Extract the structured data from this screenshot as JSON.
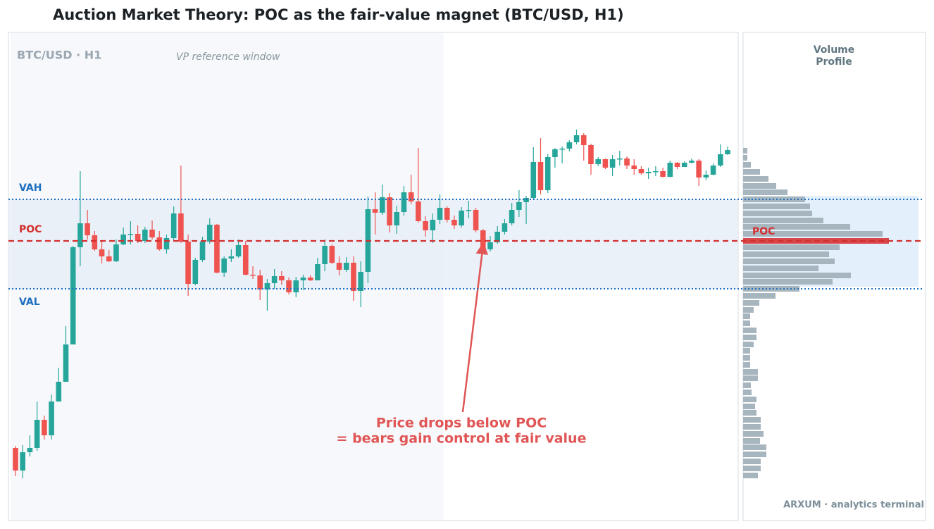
{
  "chart_data": {
    "type": "candlestick",
    "title": "Auction Market Theory: POC as the fair-value magnet  (BTC/USD, H1)",
    "watermark": "BTC/USD · H1",
    "window_label": "VP reference window",
    "vp_window": [
      0,
      59
    ],
    "up_color": "#26a69a",
    "down_color": "#ef5350",
    "ylim": [
      61,
      754
    ],
    "open": [
      164,
      132,
      158,
      164,
      204,
      182,
      230,
      258,
      311,
      449,
      483,
      466,
      446,
      436,
      429,
      453,
      467,
      468,
      458,
      474,
      463,
      446,
      462,
      497,
      457,
      397,
      431,
      457,
      481,
      413,
      433,
      436,
      452,
      410,
      409,
      389,
      398,
      408,
      402,
      385,
      402,
      406,
      402,
      425,
      451,
      427,
      417,
      427,
      387,
      414,
      503,
      498,
      520,
      480,
      499,
      527,
      514,
      486,
      473,
      488,
      505,
      488,
      480,
      501,
      502,
      473,
      446,
      456,
      471,
      483,
      502,
      513,
      519,
      570,
      530,
      577,
      588,
      589,
      598,
      608,
      594,
      567,
      574,
      562,
      574,
      575,
      565,
      560,
      554,
      556,
      557,
      549,
      569,
      563,
      569,
      572,
      548,
      552,
      565,
      581
    ],
    "high": [
      167,
      168,
      182,
      230,
      210,
      240,
      278,
      337,
      451,
      557,
      502,
      472,
      457,
      445,
      460,
      477,
      486,
      480,
      478,
      487,
      472,
      467,
      507,
      565,
      467,
      434,
      464,
      490,
      482,
      436,
      446,
      460,
      458,
      422,
      417,
      404,
      418,
      415,
      406,
      407,
      410,
      409,
      434,
      460,
      453,
      436,
      435,
      436,
      429,
      521,
      527,
      538,
      526,
      508,
      536,
      552,
      590,
      493,
      497,
      524,
      507,
      494,
      506,
      515,
      505,
      475,
      465,
      479,
      489,
      512,
      530,
      522,
      591,
      604,
      581,
      590,
      592,
      601,
      616,
      611,
      596,
      577,
      575,
      580,
      586,
      578,
      574,
      564,
      562,
      564,
      562,
      572,
      570,
      571,
      575,
      574,
      558,
      568,
      595,
      592
    ],
    "low": [
      124,
      121,
      152,
      160,
      176,
      176,
      230,
      258,
      311,
      422,
      460,
      444,
      426,
      428,
      428,
      452,
      453,
      455,
      455,
      460,
      444,
      440,
      458,
      455,
      380,
      395,
      428,
      454,
      412,
      407,
      428,
      434,
      409,
      404,
      374,
      359,
      390,
      396,
      382,
      378,
      388,
      401,
      402,
      415,
      425,
      409,
      414,
      373,
      364,
      398,
      467,
      495,
      470,
      468,
      494,
      510,
      484,
      464,
      455,
      482,
      484,
      475,
      477,
      490,
      470,
      442,
      443,
      454,
      467,
      480,
      492,
      482,
      516,
      524,
      526,
      562,
      568,
      585,
      595,
      572,
      552,
      564,
      560,
      550,
      565,
      560,
      552,
      552,
      546,
      550,
      548,
      548,
      560,
      563,
      568,
      536,
      544,
      551,
      563,
      580
    ],
    "close": [
      132,
      158,
      164,
      204,
      182,
      230,
      258,
      311,
      449,
      483,
      466,
      446,
      436,
      429,
      453,
      467,
      468,
      458,
      474,
      463,
      446,
      462,
      497,
      457,
      397,
      431,
      457,
      481,
      413,
      433,
      436,
      452,
      410,
      409,
      389,
      398,
      408,
      402,
      385,
      402,
      406,
      402,
      425,
      451,
      427,
      417,
      427,
      387,
      414,
      503,
      498,
      520,
      480,
      499,
      527,
      514,
      486,
      473,
      488,
      505,
      488,
      480,
      501,
      502,
      473,
      446,
      456,
      471,
      483,
      502,
      513,
      519,
      570,
      530,
      577,
      588,
      589,
      598,
      608,
      594,
      567,
      574,
      562,
      574,
      575,
      565,
      560,
      554,
      556,
      557,
      549,
      569,
      563,
      569,
      572,
      548,
      552,
      565,
      581,
      587
    ],
    "poc": {
      "label": "POC",
      "value": 458,
      "color": "#d32f2f"
    },
    "vah": {
      "label": "VAH",
      "value": 517,
      "color": "#1f6fbf"
    },
    "val": {
      "label": "VAL",
      "value": 390,
      "color": "#1f6fbf"
    },
    "volume_profile": {
      "title": [
        "Volume",
        "Profile"
      ],
      "poc_label": "POC",
      "color": "#a7b5bf",
      "poc_color": "#d9464a",
      "xlim": [
        0,
        250
      ],
      "levels": [
        586,
        576,
        566,
        556,
        546,
        536,
        527,
        517,
        507,
        497,
        487,
        478,
        468,
        458,
        449,
        439,
        429,
        419,
        409,
        400,
        390,
        380,
        370,
        360,
        351,
        341,
        331,
        321,
        311,
        302,
        292,
        282,
        272,
        263,
        253,
        243,
        233,
        223,
        214,
        204,
        194,
        184,
        174,
        165,
        155,
        145,
        135,
        125
      ],
      "values": [
        6,
        6,
        11,
        24,
        36,
        47,
        63,
        88,
        95,
        98,
        114,
        152,
        198,
        207,
        137,
        122,
        130,
        107,
        153,
        127,
        80,
        46,
        23,
        15,
        10,
        10,
        19,
        19,
        15,
        10,
        10,
        10,
        21,
        21,
        11,
        12,
        19,
        17,
        19,
        25,
        25,
        29,
        24,
        33,
        33,
        25,
        25,
        21
      ]
    },
    "annotation": [
      "Price drops below POC",
      "= bears gain control at fair value"
    ],
    "footer": "ARXUM · analytics terminal"
  }
}
